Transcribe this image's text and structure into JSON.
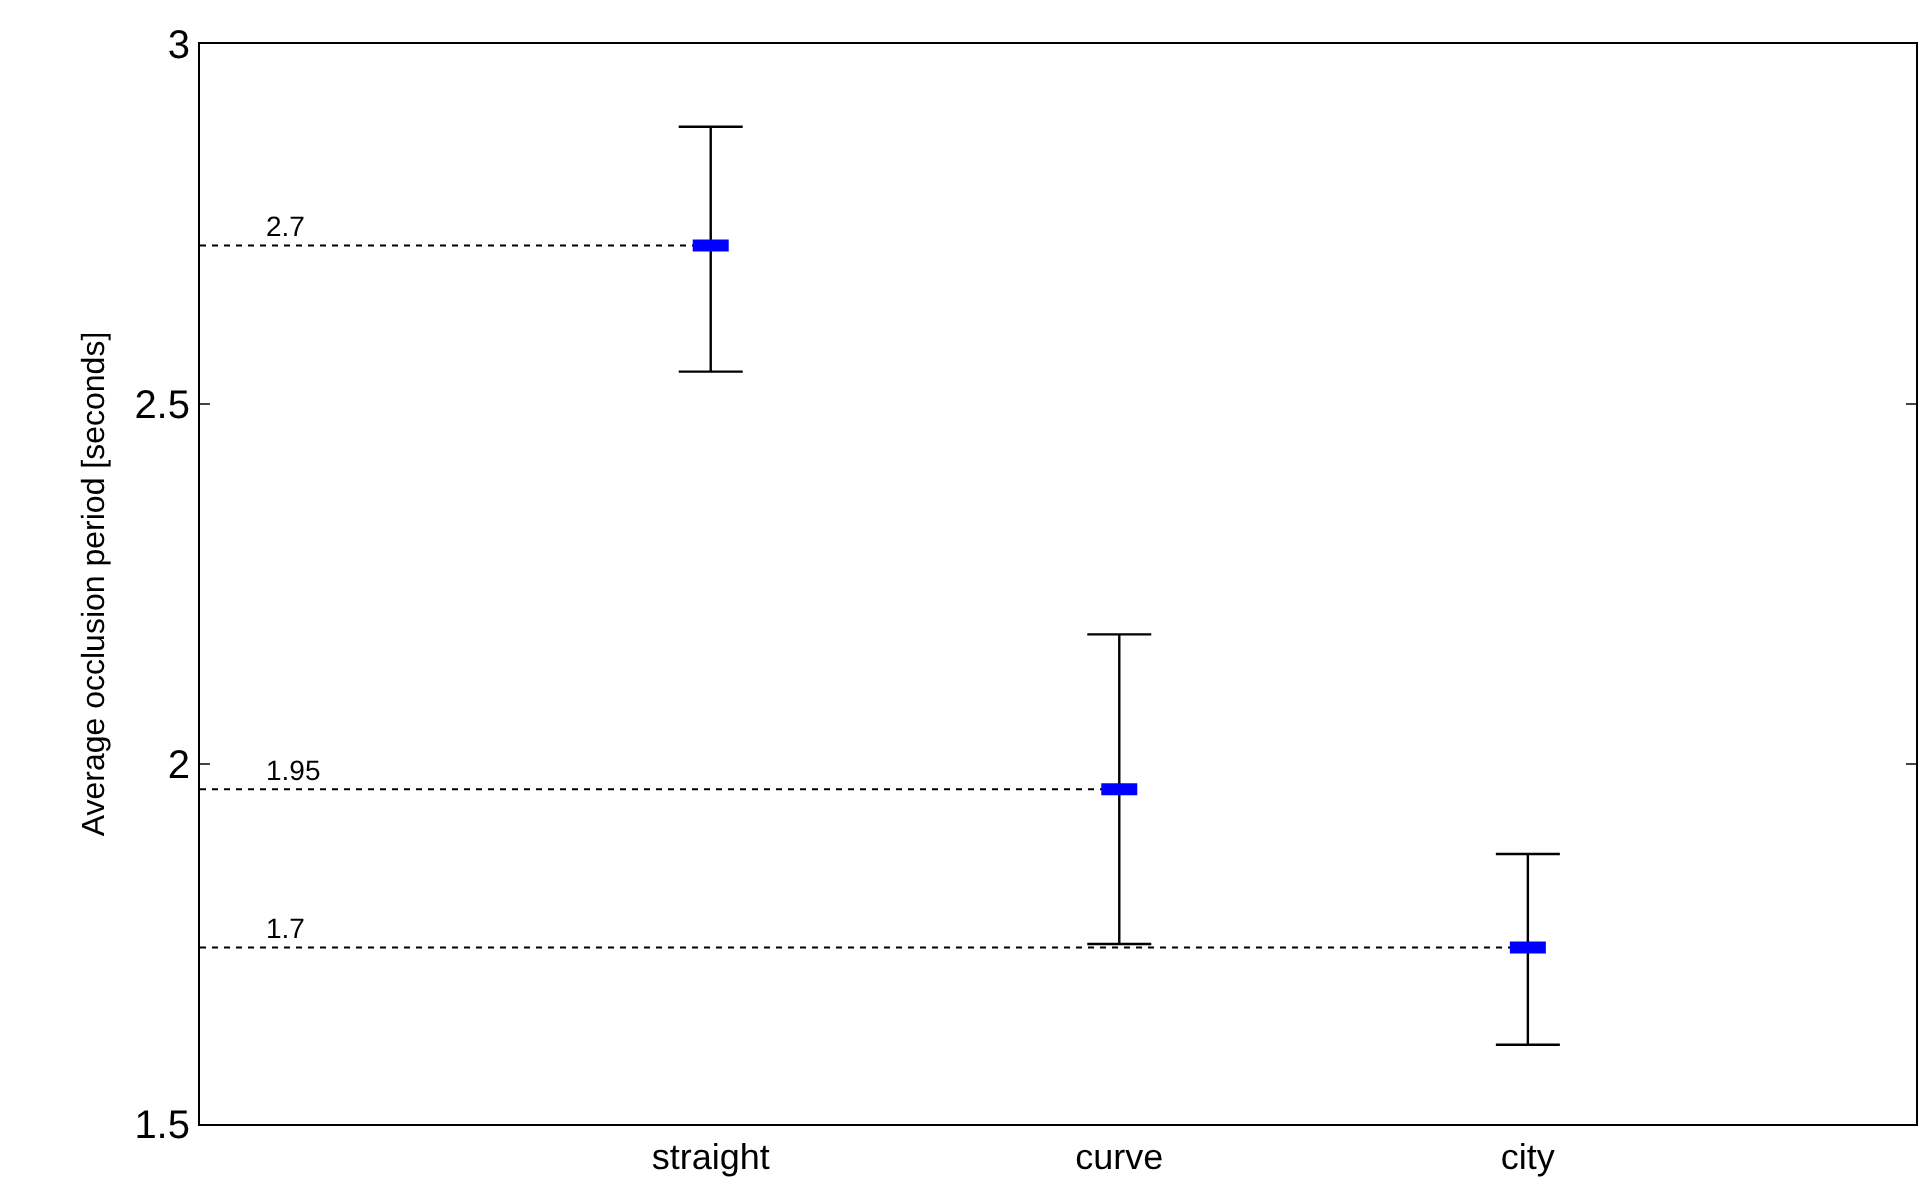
{
  "chart_data": {
    "type": "scatter",
    "ylabel": "Average occlusion period [seconds]",
    "categories": [
      "straight",
      "curve",
      "city"
    ],
    "values": [
      2.72,
      1.965,
      1.745
    ],
    "ref_lines": [
      {
        "axis": "y",
        "value": 2.72,
        "color": "#000000",
        "line_style": "dotted"
      },
      {
        "axis": "y",
        "value": 1.965,
        "color": "#000000",
        "line_style": "dotted"
      },
      {
        "axis": "y",
        "value": 1.745,
        "color": "#000000",
        "line_style": "dotted"
      }
    ],
    "annotations": [
      {
        "text": "2.7",
        "y": 2.72
      },
      {
        "text": "1.95",
        "y": 1.965
      },
      {
        "text": "1.7",
        "y": 1.745
      }
    ],
    "errors": [
      [
        2.545,
        2.885
      ],
      [
        1.75,
        2.18
      ],
      [
        1.61,
        1.875
      ]
    ],
    "color": "#0000ff",
    "ylim": [
      1.5,
      3
    ],
    "yticks": [
      1.5,
      2,
      2.5,
      3
    ],
    "grid": false,
    "legend": false
  }
}
